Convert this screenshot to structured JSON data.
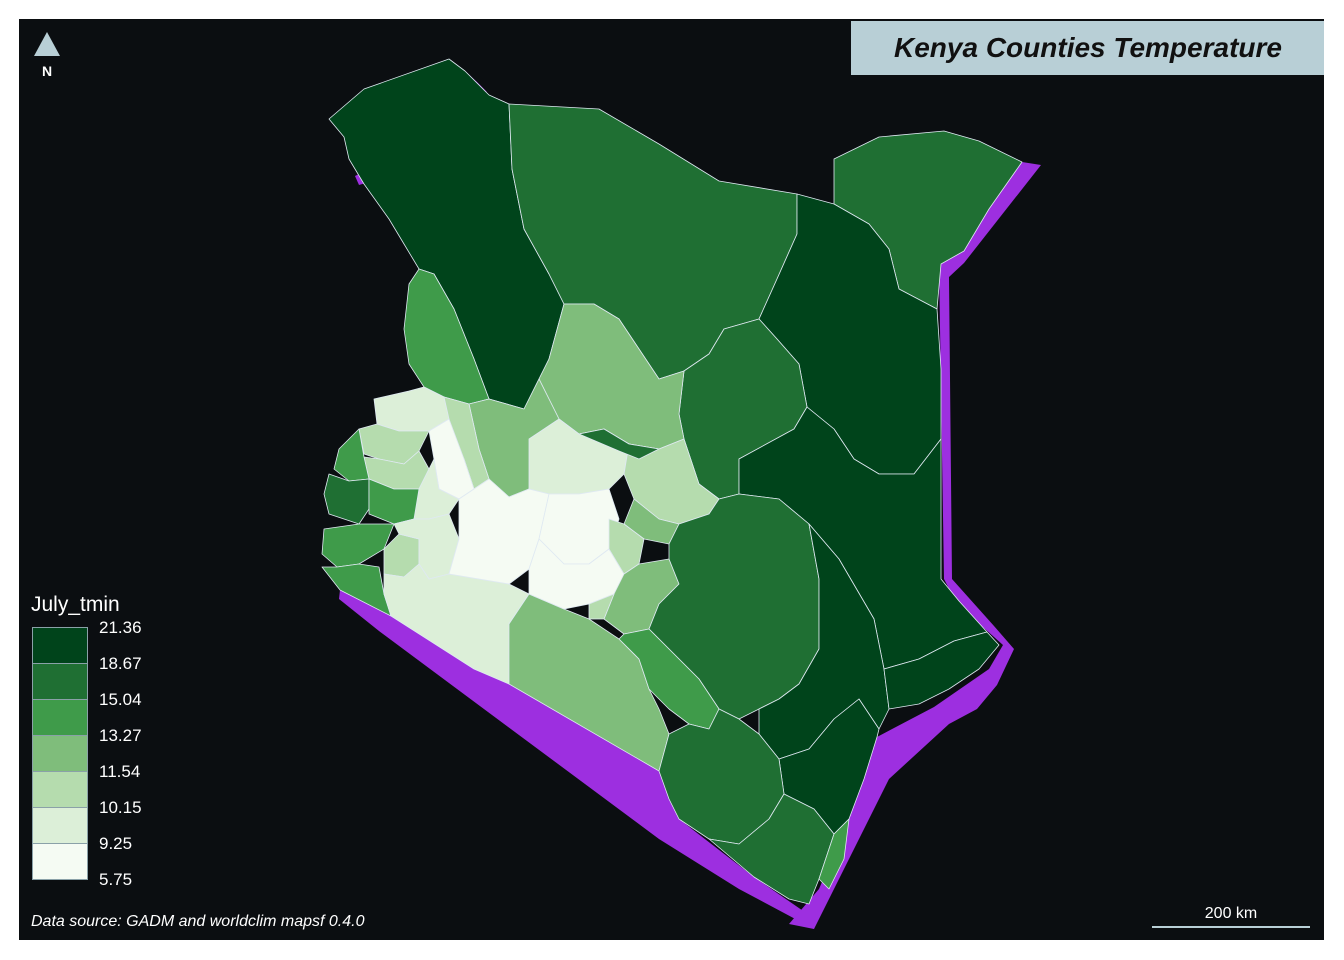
{
  "title": "Kenya Counties Temperature",
  "north_arrow": {
    "letter": "N",
    "icon": "north-arrow-icon"
  },
  "legend": {
    "title": "July_tmin",
    "breaks": [
      "21.36",
      "18.67",
      "15.04",
      "13.27",
      "11.54",
      "10.15",
      "9.25",
      "5.75"
    ],
    "colors": [
      "#00441b",
      "#1f6f33",
      "#3f9b4a",
      "#7fbd7b",
      "#b5dcae",
      "#dcefd8",
      "#f5fbf3"
    ]
  },
  "source": "Data source: GADM and worldclim mapsf 0.4.0",
  "scale_bar": {
    "label": "200 km"
  },
  "colors": {
    "background": "#0b0e11",
    "sea": "#9d2fe0",
    "title_box": "#b8cfd6",
    "border": "#dfe9f2"
  }
}
